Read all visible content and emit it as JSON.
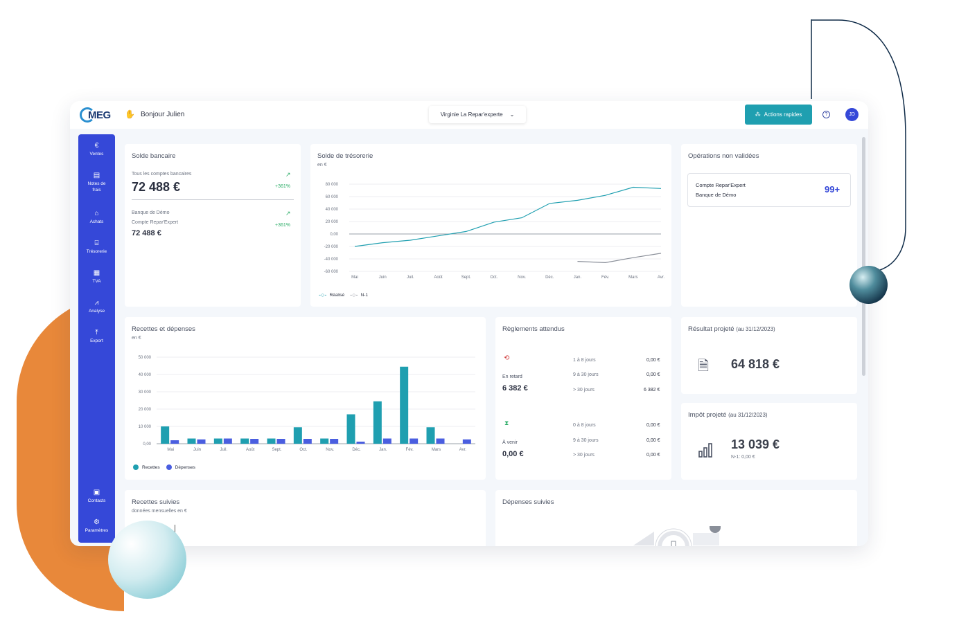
{
  "topbar": {
    "logo": "MEG",
    "greeting": "Bonjour Julien",
    "company": "Virginie La Repar'experte",
    "actions_button": "Actions rapides",
    "avatar_initials": "JD"
  },
  "sidebar": {
    "items": [
      {
        "label": "Ventes",
        "icon": "euro-icon"
      },
      {
        "label": "Notes de frais",
        "icon": "receipt-icon"
      },
      {
        "label": "Achats",
        "icon": "shopping-bag-icon"
      },
      {
        "label": "Trésorerie",
        "icon": "bank-icon"
      },
      {
        "label": "TVA",
        "icon": "calculator-icon"
      },
      {
        "label": "Analyse",
        "icon": "chart-line-icon"
      },
      {
        "label": "Export",
        "icon": "upload-icon"
      }
    ],
    "bottom_items": [
      {
        "label": "Contacts",
        "icon": "contact-card-icon"
      },
      {
        "label": "Paramètres",
        "icon": "gear-icon"
      }
    ]
  },
  "solde_bancaire": {
    "title": "Solde bancaire",
    "all_accounts_label": "Tous les comptes bancaires",
    "all_accounts_value": "72 488 €",
    "all_accounts_change": "+361%",
    "bank_name": "Banque de Démo",
    "account_name": "Compte Repar'Expert",
    "account_value": "72 488 €",
    "account_change": "+361%"
  },
  "tresorerie": {
    "title": "Solde de trésorerie",
    "unit": "en €",
    "legend_realise": "Réalisé",
    "legend_n1": "N-1"
  },
  "operations": {
    "title": "Opérations non validées",
    "account": "Compte Repar'Expert",
    "bank": "Banque de Démo",
    "count": "99+"
  },
  "recettes_depenses": {
    "title": "Recettes et dépenses",
    "unit": "en €",
    "legend_recettes": "Recettes",
    "legend_depenses": "Dépenses"
  },
  "reglements": {
    "title": "Règlements attendus",
    "late_label": "En retard",
    "late_total": "6 382 €",
    "upcoming_label": "À venir",
    "upcoming_total": "0,00 €",
    "late_rows": [
      {
        "period": "1 à 8 jours",
        "amount": "0,00 €"
      },
      {
        "period": "9 à 30 jours",
        "amount": "0,00 €"
      },
      {
        "period": "> 30 jours",
        "amount": "6 382 €"
      }
    ],
    "upcoming_rows": [
      {
        "period": "0 à 8 jours",
        "amount": "0,00 €"
      },
      {
        "period": "9 à 30 jours",
        "amount": "0,00 €"
      },
      {
        "period": "> 30 jours",
        "amount": "0,00 €"
      }
    ]
  },
  "resultat": {
    "title": "Résultat projeté",
    "date": "(au 31/12/2023)",
    "value": "64 818 €"
  },
  "impot": {
    "title": "Impôt projeté",
    "date": "(au 31/12/2023)",
    "value": "13 039 €",
    "previous": "N-1: 0,00 €"
  },
  "recettes_suivies": {
    "title": "Recettes suivies",
    "subtitle": "données mensuelles en €"
  },
  "depenses_suivies": {
    "title": "Dépenses suivies"
  },
  "colors": {
    "accent": "#3548d8",
    "teal": "#1f9fb0",
    "orange": "#E8883A",
    "positive": "#2fae6a"
  },
  "chart_data": [
    {
      "type": "line",
      "x": [
        "Mai",
        "Juin",
        "Juil.",
        "Août",
        "Sept.",
        "Oct.",
        "Nov.",
        "Déc.",
        "Jan.",
        "Fév.",
        "Mars",
        "Avr."
      ],
      "yticks": [
        "80 000",
        "60 000",
        "40 000",
        "20 000",
        "0,00",
        "-20 000",
        "-40 000",
        "-60 000"
      ],
      "ylim": [
        -60000,
        80000
      ],
      "series": [
        {
          "name": "Réalisé",
          "color": "#1f9fb0",
          "values": [
            -20000,
            -14000,
            -10000,
            -3000,
            4000,
            19000,
            26000,
            49000,
            54000,
            62000,
            75000,
            73000
          ]
        },
        {
          "name": "N-1",
          "color": "#8a8f99",
          "values": [
            null,
            null,
            null,
            null,
            null,
            null,
            null,
            null,
            -44000,
            -46000,
            -38000,
            -31000
          ]
        }
      ]
    },
    {
      "type": "bar",
      "categories": [
        "Mai",
        "Juin",
        "Juil.",
        "Août",
        "Sept.",
        "Oct.",
        "Nov.",
        "Déc.",
        "Jan.",
        "Fév.",
        "Mars",
        "Avr."
      ],
      "yticks": [
        "50 000",
        "40 000",
        "30 000",
        "20 000",
        "10 000",
        "0,00"
      ],
      "ylim": [
        0,
        50000
      ],
      "series": [
        {
          "name": "Recettes",
          "color": "#1f9fb0",
          "values": [
            10000,
            3000,
            3000,
            3000,
            3000,
            9500,
            3000,
            17000,
            24500,
            44500,
            9500,
            0
          ]
        },
        {
          "name": "Dépenses",
          "color": "#4a5ee0",
          "values": [
            2000,
            2500,
            3000,
            2800,
            2800,
            2800,
            2800,
            1200,
            3000,
            3000,
            3000,
            2500
          ]
        }
      ]
    }
  ]
}
